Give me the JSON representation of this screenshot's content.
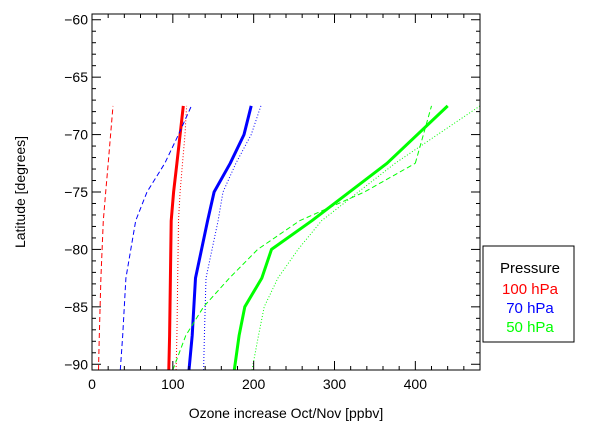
{
  "chart_data": {
    "type": "line",
    "title": "",
    "xlabel": "Ozone increase Oct/Nov [ppbv]",
    "ylabel": "Latitude [degrees]",
    "xlim": [
      0,
      480
    ],
    "ylim": [
      -90.5,
      -59.5
    ],
    "xticks": [
      "0",
      "100",
      "200",
      "300",
      "400"
    ],
    "xtick_values": [
      0,
      100,
      200,
      300,
      400
    ],
    "yticks": [
      "−60",
      "−65",
      "−70",
      "−75",
      "−80",
      "−85",
      "−90"
    ],
    "ytick_values": [
      -60,
      -65,
      -70,
      -75,
      -80,
      -85,
      -90
    ],
    "grid": false,
    "legend": {
      "placement": "bottom-right",
      "title": "Pressure",
      "entries": [
        {
          "label": "100 hPa",
          "color": "#ff0000"
        },
        {
          "label": "70 hPa",
          "color": "#0000ff"
        },
        {
          "label": "50 hPa",
          "color": "#00ff00"
        }
      ]
    },
    "series": [
      {
        "color": "#ff0000",
        "style": "solid",
        "pressure_hPa": 100,
        "x": [
          95,
          96,
          97,
          98,
          101,
          105,
          109,
          113
        ],
        "y": [
          -90.5,
          -87.5,
          -82.5,
          -77.5,
          -75,
          -72.5,
          -70,
          -67.5
        ]
      },
      {
        "color": "#ff0000",
        "style": "dashed",
        "pressure_hPa": 100,
        "x": [
          8,
          9,
          11,
          14,
          17,
          20,
          23,
          26
        ],
        "y": [
          -90.5,
          -87.5,
          -82.5,
          -77.5,
          -75,
          -72.5,
          -70,
          -67.5
        ]
      },
      {
        "color": "#ff0000",
        "style": "dotted",
        "pressure_hPa": 100,
        "x": [
          104,
          105,
          106,
          107,
          109,
          112,
          115,
          117
        ],
        "y": [
          -90.5,
          -87.5,
          -82.5,
          -77.5,
          -75,
          -72.5,
          -70,
          -67.5
        ]
      },
      {
        "color": "#0000ff",
        "style": "solid",
        "pressure_hPa": 70,
        "x": [
          120,
          124,
          128,
          143,
          151,
          171,
          188,
          197
        ],
        "y": [
          -90.5,
          -87.5,
          -82.5,
          -77.5,
          -75,
          -72.5,
          -70,
          -67.5
        ]
      },
      {
        "color": "#0000ff",
        "style": "dashed",
        "pressure_hPa": 70,
        "x": [
          35,
          38,
          42,
          54,
          68,
          90,
          107,
          123
        ],
        "y": [
          -90.5,
          -87.5,
          -82.5,
          -77.5,
          -75,
          -72.5,
          -70,
          -67.5
        ]
      },
      {
        "color": "#0000ff",
        "style": "dotted",
        "pressure_hPa": 70,
        "x": [
          138,
          139,
          141,
          156,
          162,
          178,
          197,
          209
        ],
        "y": [
          -90.5,
          -87.5,
          -82.5,
          -77.5,
          -75,
          -72.5,
          -70,
          -67.5
        ]
      },
      {
        "color": "#00ff00",
        "style": "solid",
        "pressure_hPa": 50,
        "x": [
          176,
          182,
          189,
          210,
          222,
          272,
          365,
          440
        ],
        "y": [
          -90.5,
          -87.5,
          -85,
          -82.5,
          -80,
          -77.5,
          -72.5,
          -67.5
        ]
      },
      {
        "color": "#00ff00",
        "style": "dashed",
        "pressure_hPa": 50,
        "x": [
          100,
          116,
          138,
          170,
          205,
          257,
          337,
          400
        ],
        "y": [
          -90.5,
          -87.5,
          -85,
          -82.5,
          -80,
          -77.5,
          -75,
          -72.5
        ]
      },
      {
        "color": "#00ff00",
        "style": "dotted",
        "pressure_hPa": 50,
        "x": [
          198,
          206,
          213,
          230,
          255,
          284,
          375,
          480
        ],
        "y": [
          -90.5,
          -87.5,
          -85,
          -82.5,
          -80,
          -77.5,
          -72.5,
          -67.5
        ]
      },
      {
        "color": "#00ff00",
        "style": "dashed",
        "pressure_hPa": 50,
        "x": [
          400,
          420
        ],
        "y": [
          -72.5,
          -67.5
        ]
      }
    ]
  }
}
